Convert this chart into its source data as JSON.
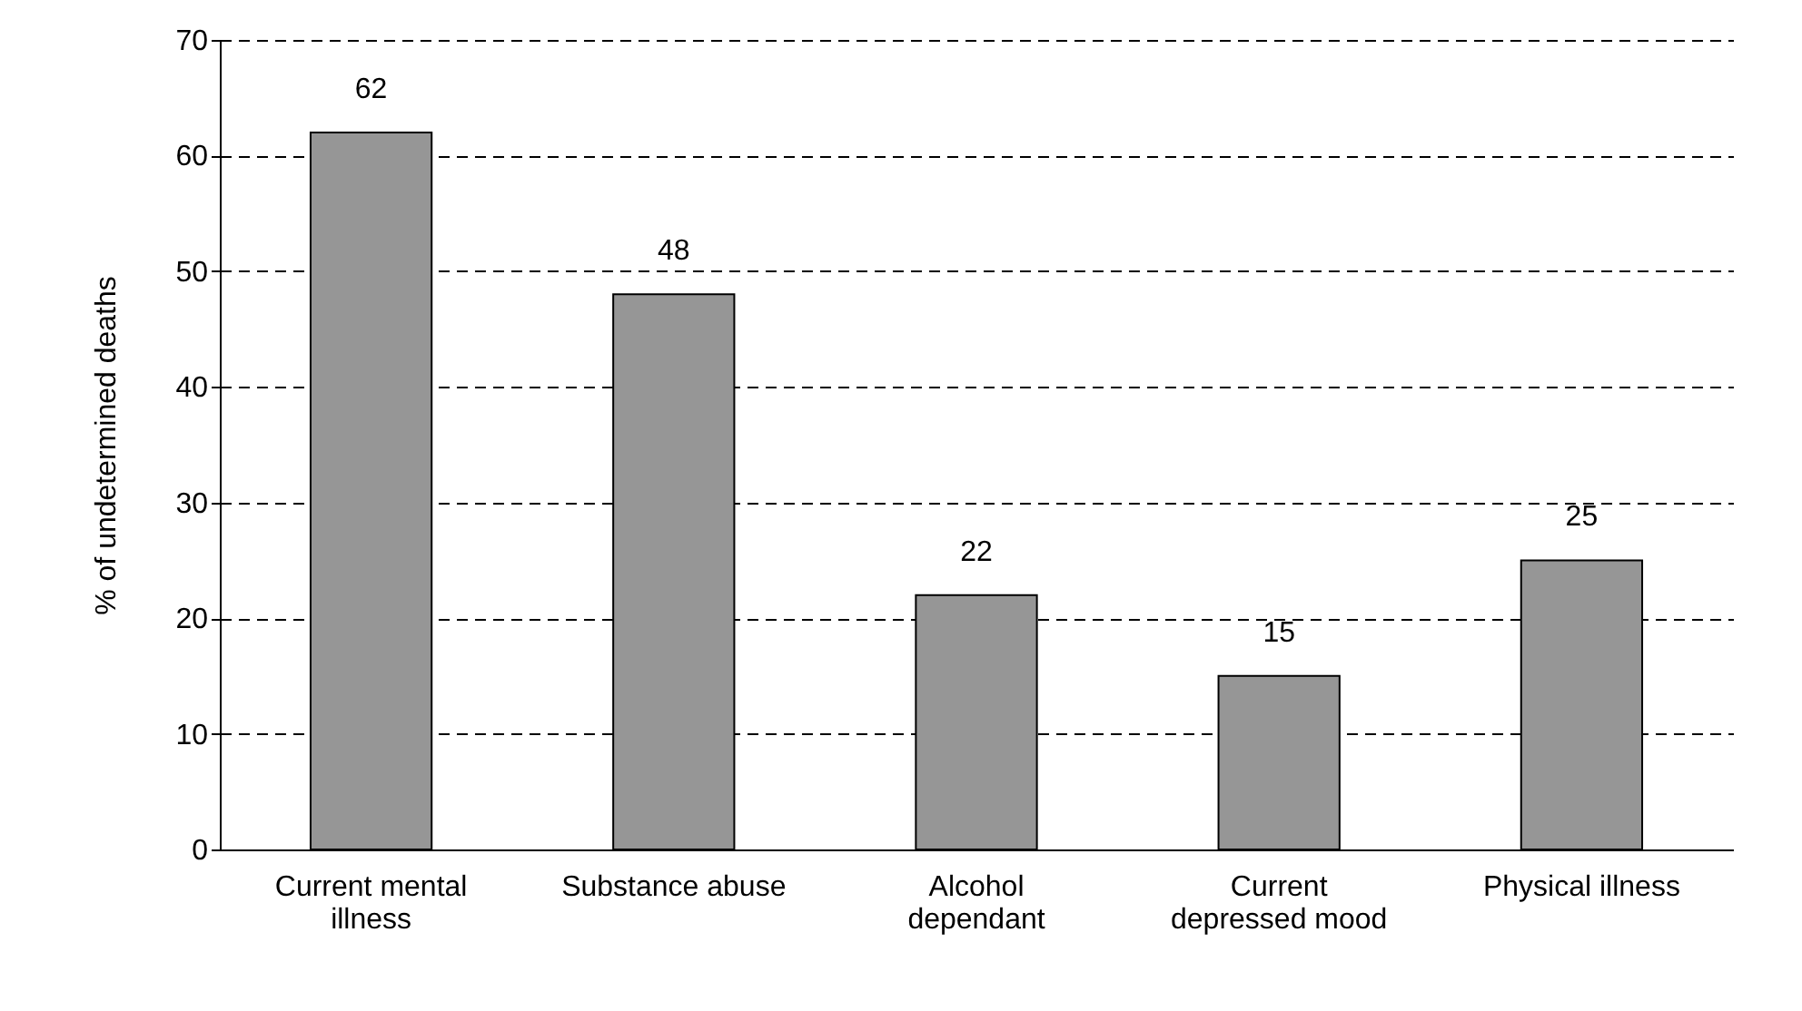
{
  "chart_data": {
    "type": "bar",
    "ylabel": "% of undetermined deaths",
    "categories": [
      "Current mental illness",
      "Substance abuse",
      "Alcohol dependant",
      "Current depressed mood",
      "Physical illness"
    ],
    "values": [
      62,
      48,
      22,
      15,
      25
    ],
    "color": "#969696",
    "ylim": [
      0,
      70
    ],
    "yticks": [
      0,
      10,
      20,
      30,
      40,
      50,
      60,
      70
    ],
    "grid": "y",
    "data_labels": true
  }
}
